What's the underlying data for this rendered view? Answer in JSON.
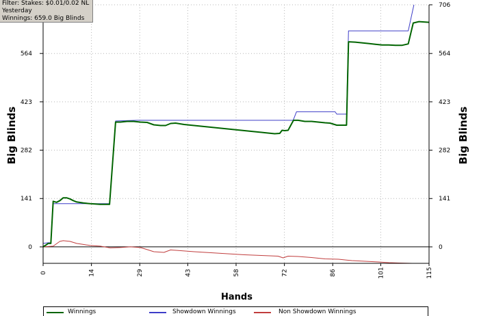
{
  "filter_info": {
    "line1": "Filter: Stakes: $0.01/0.02 NL",
    "line2": "Yesterday",
    "line3": "Winnings: 659.0 Big Blinds"
  },
  "colors": {
    "winnings": "#006400",
    "showdown": "#3c3cc8",
    "non_showdown": "#c03c3c",
    "grid": "#b4b4b4",
    "axis": "#000000"
  },
  "chart_data": {
    "type": "line",
    "xlabel": "Hands",
    "ylabel": "Big Blinds",
    "ylabel_right": "Big Blinds",
    "xlim": [
      0,
      115
    ],
    "ylim": [
      -48,
      706
    ],
    "x_ticks": [
      "0",
      "14",
      "29",
      "43",
      "58",
      "72",
      "86",
      "101",
      "115"
    ],
    "x_tick_values": [
      0,
      14.4,
      28.8,
      43.1,
      57.5,
      71.9,
      86.3,
      100.6,
      115
    ],
    "y_ticks": [
      "0",
      "141",
      "282",
      "423",
      "564",
      "706"
    ],
    "y_tick_values": [
      0,
      141,
      282,
      423,
      564,
      706
    ],
    "grid": true,
    "legend_position": "bottom",
    "series": [
      {
        "name": "Winnings",
        "key": "winnings",
        "points": [
          [
            0,
            0
          ],
          [
            0.8,
            5
          ],
          [
            1.5,
            10
          ],
          [
            2.3,
            10
          ],
          [
            3,
            133
          ],
          [
            4,
            130
          ],
          [
            5,
            135
          ],
          [
            6,
            143
          ],
          [
            7,
            143
          ],
          [
            8,
            140
          ],
          [
            9,
            135
          ],
          [
            10,
            131
          ],
          [
            12,
            128
          ],
          [
            14,
            126
          ],
          [
            17,
            124
          ],
          [
            19.8,
            124
          ],
          [
            21.6,
            364
          ],
          [
            23,
            364
          ],
          [
            25,
            366
          ],
          [
            27,
            366
          ],
          [
            29,
            364
          ],
          [
            31,
            363
          ],
          [
            33,
            356
          ],
          [
            35,
            354
          ],
          [
            36.5,
            354
          ],
          [
            38,
            360
          ],
          [
            39.5,
            361
          ],
          [
            42,
            357
          ],
          [
            46,
            353
          ],
          [
            50,
            349
          ],
          [
            54,
            345
          ],
          [
            58,
            341
          ],
          [
            62,
            337
          ],
          [
            66,
            333
          ],
          [
            69,
            330
          ],
          [
            70.5,
            331
          ],
          [
            71.2,
            340
          ],
          [
            72,
            339
          ],
          [
            73,
            340
          ],
          [
            74.6,
            369
          ],
          [
            76,
            369
          ],
          [
            78,
            366
          ],
          [
            80,
            366
          ],
          [
            82,
            364
          ],
          [
            84,
            362
          ],
          [
            85.5,
            361
          ],
          [
            87.5,
            355
          ],
          [
            90.4,
            355
          ],
          [
            91,
            598
          ],
          [
            93,
            597
          ],
          [
            95,
            595
          ],
          [
            97,
            593
          ],
          [
            99,
            591
          ],
          [
            101,
            589
          ],
          [
            103,
            589
          ],
          [
            105,
            588
          ],
          [
            107,
            588
          ],
          [
            108.8,
            592
          ],
          [
            110.3,
            653
          ],
          [
            112,
            657
          ],
          [
            115,
            655
          ]
        ]
      },
      {
        "name": "Showdown Winnings",
        "key": "showdown",
        "points": [
          [
            0,
            10
          ],
          [
            1.5,
            12
          ],
          [
            2.3,
            12
          ],
          [
            3,
            126
          ],
          [
            10,
            126
          ],
          [
            19.8,
            126
          ],
          [
            21.6,
            367
          ],
          [
            28,
            369
          ],
          [
            36,
            369
          ],
          [
            50,
            369
          ],
          [
            60,
            369
          ],
          [
            74.5,
            369
          ],
          [
            75.5,
            394
          ],
          [
            87,
            394
          ],
          [
            87.5,
            387
          ],
          [
            90.4,
            387
          ],
          [
            91,
            630
          ],
          [
            101,
            630
          ],
          [
            108.8,
            630
          ],
          [
            110.5,
            706
          ]
        ]
      },
      {
        "name": "Non Showdown Winnings",
        "key": "non_showdown",
        "points": [
          [
            0,
            0
          ],
          [
            3,
            2
          ],
          [
            5,
            16
          ],
          [
            6,
            18
          ],
          [
            8,
            16
          ],
          [
            10,
            10
          ],
          [
            12,
            7
          ],
          [
            14,
            4
          ],
          [
            17,
            2
          ],
          [
            20,
            -3
          ],
          [
            23,
            -2
          ],
          [
            26,
            0
          ],
          [
            29,
            -2
          ],
          [
            31,
            -8
          ],
          [
            33,
            -14
          ],
          [
            36,
            -16
          ],
          [
            38,
            -9
          ],
          [
            41,
            -11
          ],
          [
            45,
            -14
          ],
          [
            50,
            -17
          ],
          [
            55,
            -20
          ],
          [
            60,
            -23
          ],
          [
            65,
            -25
          ],
          [
            70,
            -27
          ],
          [
            71.5,
            -32
          ],
          [
            73,
            -27
          ],
          [
            76,
            -28
          ],
          [
            80,
            -31
          ],
          [
            84,
            -35
          ],
          [
            88,
            -36
          ],
          [
            92,
            -40
          ],
          [
            96,
            -42
          ],
          [
            100,
            -44
          ],
          [
            103,
            -46
          ],
          [
            106,
            -47
          ],
          [
            110,
            -48
          ],
          [
            113,
            -48
          ],
          [
            115,
            -48
          ]
        ]
      }
    ]
  }
}
